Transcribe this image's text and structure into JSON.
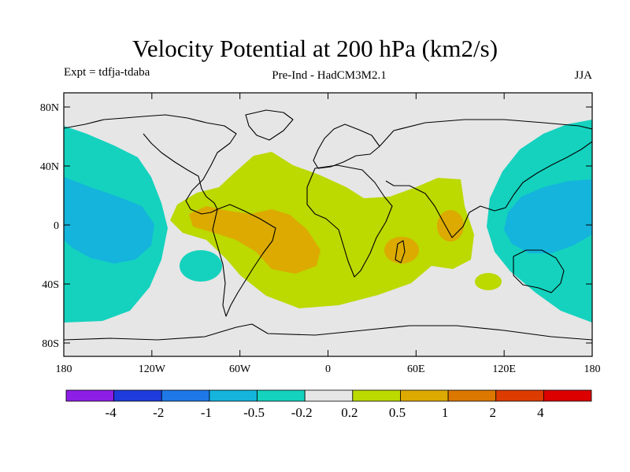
{
  "header": {
    "title": "Velocity Potential at 200 hPa (km2/s)",
    "experiment": "Expt = tdfja-tdaba",
    "subtitle": "Pre-Ind - HadCM3M2.1",
    "season": "JJA"
  },
  "axes": {
    "lat_labels": [
      "80N",
      "40N",
      "0",
      "40S",
      "80S"
    ],
    "lon_labels": [
      "180",
      "120W",
      "60W",
      "0",
      "60E",
      "120E",
      "180"
    ]
  },
  "colorbar": {
    "colors": [
      "#8c1ee6",
      "#1e3cdc",
      "#1e78e6",
      "#14b4dc",
      "#14d2be",
      "#e6e6e6",
      "#bcd900",
      "#dcaa00",
      "#dc7800",
      "#dc3c00",
      "#dc0000"
    ],
    "labels": [
      "-4",
      "-2",
      "-1",
      "-0.5",
      "-0.2",
      "0.2",
      "0.5",
      "1",
      "2",
      "4"
    ]
  },
  "palette": {
    "background": "#e6e6e6",
    "teal": "#14d2be",
    "cyan": "#14b4dc",
    "lime": "#bcd900",
    "orange": "#dcaa00"
  }
}
